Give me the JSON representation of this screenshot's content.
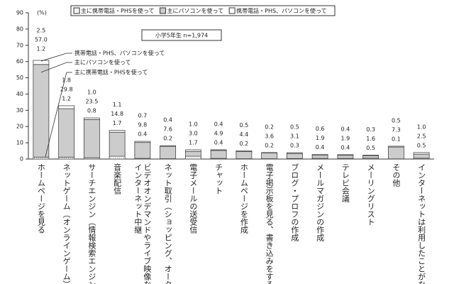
{
  "chart_data": {
    "type": "stacked_bar",
    "y_unit": "(%)",
    "annotation": "小学5年生 n=1,974",
    "callouts": [
      "携帯電話・PHS、パソコンを使って",
      "主にパソコンを使って",
      "主に携帯電話・PHSを使って"
    ],
    "categories": [
      "ホームページを見る",
      "ネットゲーム（オンラインゲーム）",
      "サーチエンジン（情報検索エンジン",
      "音楽配信",
      "ビデオオンデマンドやライブ映像な\nインターネット中継",
      "ネット取引（ショッピング、オークショ",
      "電子メールの送受信",
      "チャット",
      "ホームページを作成",
      "電子掲示板を見る、書き込みをする",
      "ブログ・プロフの作成",
      "メールマガジンの作成",
      "テレビ会議",
      "メーリングリスト",
      "その他",
      "インターネットは利用したことがな"
    ],
    "series": [
      {
        "name": "主に携帯電話・PHSを使って",
        "color": "#ffffff",
        "values": [
          1.2,
          1.2,
          0.8,
          1.7,
          0.4,
          0.2,
          1.7,
          0.4,
          0.2,
          0.2,
          0.3,
          0.4,
          0.4,
          0.5,
          0.1,
          0.5
        ],
        "value_labels": [
          "1.2",
          "1.2",
          "0.8",
          "1.7",
          "0.4",
          "0.2",
          "1.7",
          "0.4",
          "0.2",
          "0.2",
          "0.3",
          "0.4",
          "0.4",
          "0.5",
          "0.1",
          "0.5"
        ]
      },
      {
        "name": "主にパソコンを使って",
        "color": "#cccccc",
        "values": [
          57.0,
          29.8,
          23.5,
          14.8,
          9.8,
          7.6,
          3.0,
          4.9,
          4.4,
          3.6,
          3.1,
          1.9,
          1.9,
          1.6,
          7.3,
          2.5
        ],
        "value_labels": [
          "57.0",
          "29.8",
          "23.5",
          "14.8",
          "9.8",
          "7.6",
          "3.0",
          "4.9",
          "4.4",
          "3.6",
          "3.1",
          "1.9",
          "1.9",
          "1.6",
          "7.3",
          "2.5"
        ]
      },
      {
        "name": "携帯電話・PHS、パソコンを使って",
        "color": "#ffffff",
        "values": [
          2.5,
          1.8,
          1.0,
          1.1,
          0.7,
          0.4,
          1.0,
          0.4,
          0.5,
          0.2,
          0.5,
          0.6,
          0.4,
          0.3,
          0.5,
          1.0
        ],
        "value_labels": [
          "2.5",
          "1.8",
          "1.0",
          "1.1",
          "0.7",
          "0.4",
          "1.0",
          "0.4",
          "0.5",
          "0.2",
          "0.5",
          "0.6",
          "0.4",
          "0.3",
          "0.5",
          "1.0"
        ]
      }
    ],
    "ylim": [
      0,
      90
    ],
    "yticks": [
      0,
      10,
      20,
      30,
      40,
      50,
      60,
      70,
      80,
      90
    ]
  }
}
